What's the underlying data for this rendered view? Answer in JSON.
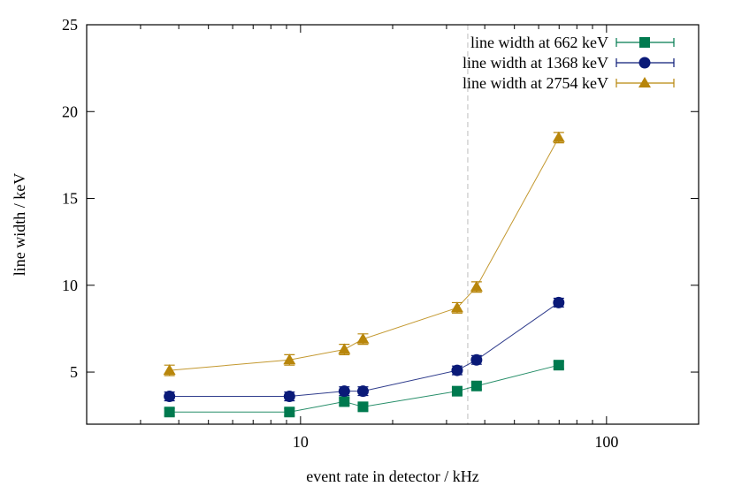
{
  "chart_data": {
    "type": "line",
    "title": "",
    "xlabel": "event rate in detector / kHz",
    "ylabel": "line width / keV",
    "xscale": "log",
    "xlim": [
      2,
      200
    ],
    "ylim": [
      2,
      25
    ],
    "xticks": [
      10,
      100
    ],
    "xtick_labels": [
      "10",
      "100"
    ],
    "yticks": [
      5,
      10,
      15,
      20,
      25
    ],
    "ytick_labels": [
      "5",
      "10",
      "15",
      "20",
      "25"
    ],
    "grid": false,
    "legend_position": "top-right",
    "vertical_reference_line": {
      "x": 35.2,
      "style": "dashed",
      "color": "#c8c8c8"
    },
    "x": [
      3.73,
      9.2,
      13.9,
      16.0,
      32.5,
      37.6,
      69.8
    ],
    "series": [
      {
        "name": "line width at 662 keV",
        "marker": "square",
        "color": "#007a4f",
        "values": [
          2.7,
          2.7,
          3.3,
          3.0,
          3.9,
          4.2,
          5.4
        ],
        "errors": [
          0.2,
          0.2,
          0.2,
          0.2,
          0.2,
          0.2,
          0.2
        ]
      },
      {
        "name": "line width at 1368 keV",
        "marker": "circle",
        "color": "#0a1a78",
        "values": [
          3.6,
          3.6,
          3.9,
          3.9,
          5.1,
          5.7,
          9.0
        ],
        "errors": [
          0.25,
          0.25,
          0.25,
          0.25,
          0.25,
          0.25,
          0.25
        ]
      },
      {
        "name": "line width at 2754 keV",
        "marker": "triangle",
        "color": "#b8860b",
        "values": [
          5.1,
          5.7,
          6.3,
          6.9,
          8.7,
          9.9,
          18.5
        ],
        "errors": [
          0.3,
          0.3,
          0.3,
          0.3,
          0.3,
          0.3,
          0.3
        ]
      }
    ]
  }
}
